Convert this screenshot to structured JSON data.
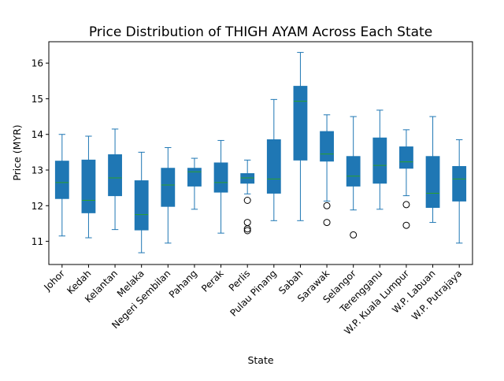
{
  "chart_data": {
    "type": "boxplot",
    "title": "Price Distribution of THIGH AYAM Across Each State",
    "xlabel": "State",
    "ylabel": "Price (MYR)",
    "ylim": [
      10.35,
      16.6
    ],
    "yticks": [
      11,
      12,
      13,
      14,
      15,
      16
    ],
    "grid": false,
    "legend": "none",
    "box_color": "#1f77b4",
    "median_color": "#2ca02c",
    "categories": [
      "Johor",
      "Kedah",
      "Kelantan",
      "Melaka",
      "Negeri Sembilan",
      "Pahang",
      "Perak",
      "Perlis",
      "Pulau Pinang",
      "Sabah",
      "Sarawak",
      "Selangor",
      "Terengganu",
      "W.P. Kuala Lumpur",
      "W.P. Labuan",
      "W.P. Putrajaya"
    ],
    "boxes": [
      {
        "whisker_low": 11.15,
        "q1": 12.2,
        "median": 12.65,
        "q3": 13.25,
        "whisker_high": 14.0,
        "outliers": []
      },
      {
        "whisker_low": 11.1,
        "q1": 11.8,
        "median": 12.15,
        "q3": 13.28,
        "whisker_high": 13.95,
        "outliers": []
      },
      {
        "whisker_low": 11.33,
        "q1": 12.28,
        "median": 12.78,
        "q3": 13.43,
        "whisker_high": 14.15,
        "outliers": []
      },
      {
        "whisker_low": 10.68,
        "q1": 11.32,
        "median": 11.75,
        "q3": 12.7,
        "whisker_high": 13.5,
        "outliers": []
      },
      {
        "whisker_low": 10.95,
        "q1": 11.98,
        "median": 12.58,
        "q3": 13.05,
        "whisker_high": 13.63,
        "outliers": []
      },
      {
        "whisker_low": 11.9,
        "q1": 12.55,
        "median": 12.95,
        "q3": 13.05,
        "whisker_high": 13.33,
        "outliers": []
      },
      {
        "whisker_low": 11.23,
        "q1": 12.38,
        "median": 12.65,
        "q3": 13.2,
        "whisker_high": 13.83,
        "outliers": []
      },
      {
        "whisker_low": 12.33,
        "q1": 12.63,
        "median": 12.78,
        "q3": 12.9,
        "whisker_high": 13.28,
        "outliers": [
          12.15,
          11.53,
          11.35,
          11.3
        ]
      },
      {
        "whisker_low": 11.58,
        "q1": 12.35,
        "median": 12.75,
        "q3": 13.85,
        "whisker_high": 14.98,
        "outliers": []
      },
      {
        "whisker_low": 11.58,
        "q1": 13.28,
        "median": 14.93,
        "q3": 15.35,
        "whisker_high": 16.3,
        "outliers": []
      },
      {
        "whisker_low": 12.13,
        "q1": 13.25,
        "median": 13.45,
        "q3": 14.08,
        "whisker_high": 14.55,
        "outliers": [
          12.0,
          11.53
        ]
      },
      {
        "whisker_low": 11.88,
        "q1": 12.55,
        "median": 12.83,
        "q3": 13.38,
        "whisker_high": 14.5,
        "outliers": [
          11.18
        ]
      },
      {
        "whisker_low": 11.9,
        "q1": 12.63,
        "median": 13.13,
        "q3": 13.9,
        "whisker_high": 14.68,
        "outliers": []
      },
      {
        "whisker_low": 12.28,
        "q1": 13.05,
        "median": 13.23,
        "q3": 13.65,
        "whisker_high": 14.13,
        "outliers": [
          12.03,
          11.45
        ]
      },
      {
        "whisker_low": 11.53,
        "q1": 11.95,
        "median": 12.35,
        "q3": 13.38,
        "whisker_high": 14.5,
        "outliers": []
      },
      {
        "whisker_low": 10.95,
        "q1": 12.13,
        "median": 12.75,
        "q3": 13.1,
        "whisker_high": 13.85,
        "outliers": []
      }
    ]
  }
}
